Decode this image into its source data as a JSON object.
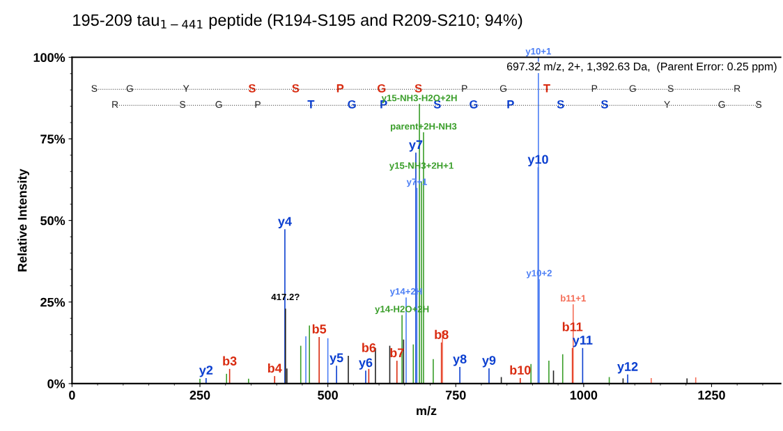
{
  "chart_data": {
    "type": "bar",
    "title": "195-209 tau$_{1−441}$ peptide (R194-S195 and R209-S210; 94%)",
    "xlabel": "m/z",
    "ylabel": "Relative Intensity",
    "xlim": [
      0,
      1385
    ],
    "ylim": [
      0,
      100
    ],
    "xticks": [
      0,
      250,
      500,
      750,
      1000,
      1250
    ],
    "yticks": [
      {
        "value": 0,
        "label": "0%"
      },
      {
        "value": 25,
        "label": "25%"
      },
      {
        "value": 50,
        "label": "50%"
      },
      {
        "value": 75,
        "label": "75%"
      },
      {
        "value": 100,
        "label": "100%"
      }
    ],
    "annotations": [
      "697.32 m/z, 2+, 1,392.63 Da,  (Parent Error: 0.25 ppm)",
      {
        "text": "417.2?",
        "x": 417.2,
        "y": 25
      }
    ],
    "series": [
      {
        "color": "#0b3fd0",
        "x": [
          262,
          416,
          517,
          574,
          672,
          758,
          815,
          911,
          998,
          1086
        ],
        "values": [
          1.7,
          47.3,
          5.5,
          4,
          70.8,
          5.1,
          4.7,
          66.3,
          10.9,
          2.8
        ],
        "value_labels": [
          "y2",
          "y4",
          "y5",
          "y6",
          "y7",
          "y8",
          "y9",
          "y10",
          "y11",
          "y12"
        ]
      },
      {
        "color": "#4d7ff5",
        "x": [
          457,
          500,
          653,
          674,
          911.5,
          913
        ],
        "values": [
          14.5,
          13.9,
          26.4,
          60,
          100,
          32
        ],
        "value_labels": [
          null,
          null,
          "y14+2H",
          "y7+1",
          "y10+1",
          "y10+2"
        ]
      },
      {
        "color": "#d92b10",
        "x": [
          308,
          396,
          483,
          580,
          635,
          722,
          876,
          978
        ],
        "values": [
          4.5,
          2.3,
          14.3,
          4.5,
          7,
          12.6,
          1.7,
          10.9
        ],
        "value_labels": [
          "b3",
          "b4",
          "b5",
          "b6",
          "b7",
          "b8",
          "b10",
          "b11"
        ]
      },
      {
        "color": "#f5705a",
        "x": [
          724,
          979.5,
          1132,
          1219
        ],
        "values": [
          16,
          24.3,
          1.7,
          1.9
        ],
        "value_labels": [
          null,
          "b11+1",
          null,
          null
        ]
      },
      {
        "color": "#3a9e2a",
        "x": [
          250,
          302,
          345,
          447,
          464,
          645,
          667,
          679,
          683,
          687,
          706,
          897,
          932,
          959,
          1050
        ],
        "values": [
          1.5,
          3,
          1.5,
          11.6,
          17.8,
          21,
          12,
          85.7,
          62,
          77,
          7.5,
          6,
          7,
          9,
          2
        ],
        "value_labels": [
          null,
          null,
          null,
          null,
          null,
          "y14-H2O+2H",
          null,
          "y15-NH3-H2O+2H",
          "y15-NH3+2H+1",
          "parent+2H-NH3",
          null,
          null,
          null,
          null,
          null
        ]
      },
      {
        "color": "#222222",
        "x": [
          417.2,
          420,
          540,
          593,
          621,
          648,
          839,
          941,
          1077,
          1202
        ],
        "values": [
          23,
          4.6,
          8.5,
          10.9,
          11.6,
          13.5,
          2,
          4,
          1.6,
          1.6
        ]
      },
      {
        "type": "line",
        "marker": "none",
        "line_style": "dotted",
        "color": "#333333",
        "x": [
          43.5,
          113,
          223,
          352,
          437,
          524,
          605,
          677,
          767,
          843,
          928,
          1021,
          1096,
          1170,
          1300
        ],
        "values": [
          90.2,
          90.2,
          90.2,
          90.2,
          90.2,
          90.2,
          90.2,
          90.2,
          90.2,
          90.2,
          90.2,
          90.2,
          90.2,
          90.2,
          90.2
        ],
        "value_labels": [
          "S",
          "G",
          "Y",
          "S",
          "S",
          "P",
          "G",
          "S",
          "P",
          "G",
          "T",
          "P",
          "G",
          "S",
          "R"
        ],
        "colors": [
          "#222222",
          "#222222",
          "#222222",
          "#d92b10",
          "#d92b10",
          "#d92b10",
          "#d92b10",
          "#d92b10",
          "#222222",
          "#222222",
          "#d92b10",
          "#222222",
          "#222222",
          "#222222",
          "#222222"
        ]
      },
      {
        "type": "line",
        "marker": "none",
        "line_style": "dotted",
        "color": "#333333",
        "x": [
          84,
          216,
          287,
          363,
          467,
          547,
          609,
          714,
          785,
          857,
          955,
          1041,
          1163,
          1270,
          1342
        ],
        "values": [
          85.3,
          85.3,
          85.3,
          85.3,
          85.3,
          85.3,
          85.3,
          85.3,
          85.3,
          85.3,
          85.3,
          85.3,
          85.3,
          85.3,
          85.3
        ],
        "value_labels": [
          "R",
          "S",
          "G",
          "P",
          "T",
          "G",
          "P",
          "S",
          "G",
          "P",
          "S",
          "S",
          "Y",
          "G",
          "S"
        ],
        "colors": [
          "#222222",
          "#222222",
          "#222222",
          "#222222",
          "#0b3fd0",
          "#0b3fd0",
          "#0b3fd0",
          "#0b3fd0",
          "#0b3fd0",
          "#0b3fd0",
          "#0b3fd0",
          "#0b3fd0",
          "#222222",
          "#222222",
          "#222222"
        ]
      }
    ]
  }
}
